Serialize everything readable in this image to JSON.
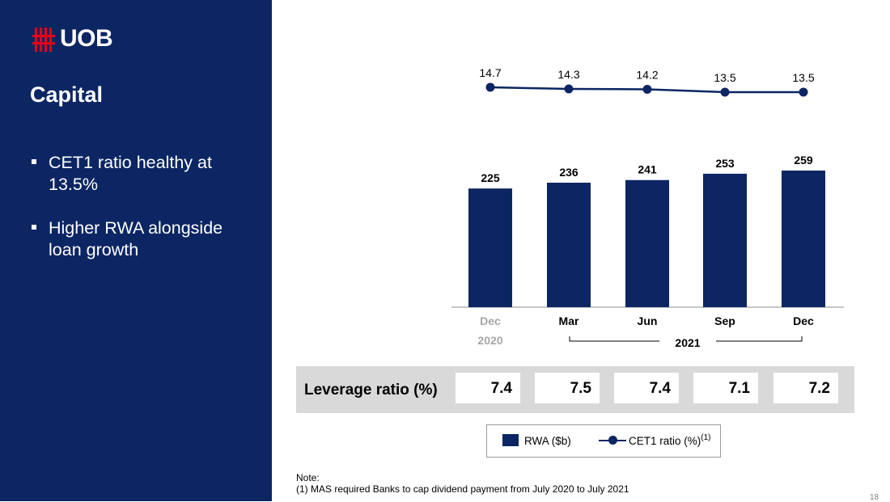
{
  "brand": {
    "name": "UOB",
    "colors": {
      "navy": "#0c2663",
      "red": "#e3001b"
    }
  },
  "sidebar": {
    "title": "Capital",
    "bullets": [
      "CET1 ratio healthy at 13.5%",
      "Higher RWA alongside loan growth"
    ]
  },
  "chart_data": {
    "type": "bar",
    "categories": [
      "Dec",
      "Mar",
      "Jun",
      "Sep",
      "Dec"
    ],
    "group_labels": [
      "2020",
      "2021"
    ],
    "series": [
      {
        "name": "RWA ($b)",
        "type": "bar",
        "values": [
          225,
          236,
          241,
          253,
          259
        ],
        "color": "#0c2663"
      },
      {
        "name": "CET1 ratio (%)",
        "type": "line",
        "values": [
          14.7,
          14.3,
          14.2,
          13.5,
          13.5
        ],
        "color": "#0c2663"
      }
    ],
    "legend": {
      "position": "bottom",
      "rwa_label": "RWA ($b)",
      "cet1_label": "CET1 ratio (%)",
      "cet1_footnote_ref": "(1)"
    },
    "grid": false
  },
  "leverage": {
    "label": "Leverage ratio (%)",
    "values": [
      "7.4",
      "7.5",
      "7.4",
      "7.1",
      "7.2"
    ]
  },
  "note": {
    "heading": "Note:",
    "text": "(1) MAS required Banks to cap dividend payment from July 2020 to July 2021"
  },
  "page_number": "18"
}
